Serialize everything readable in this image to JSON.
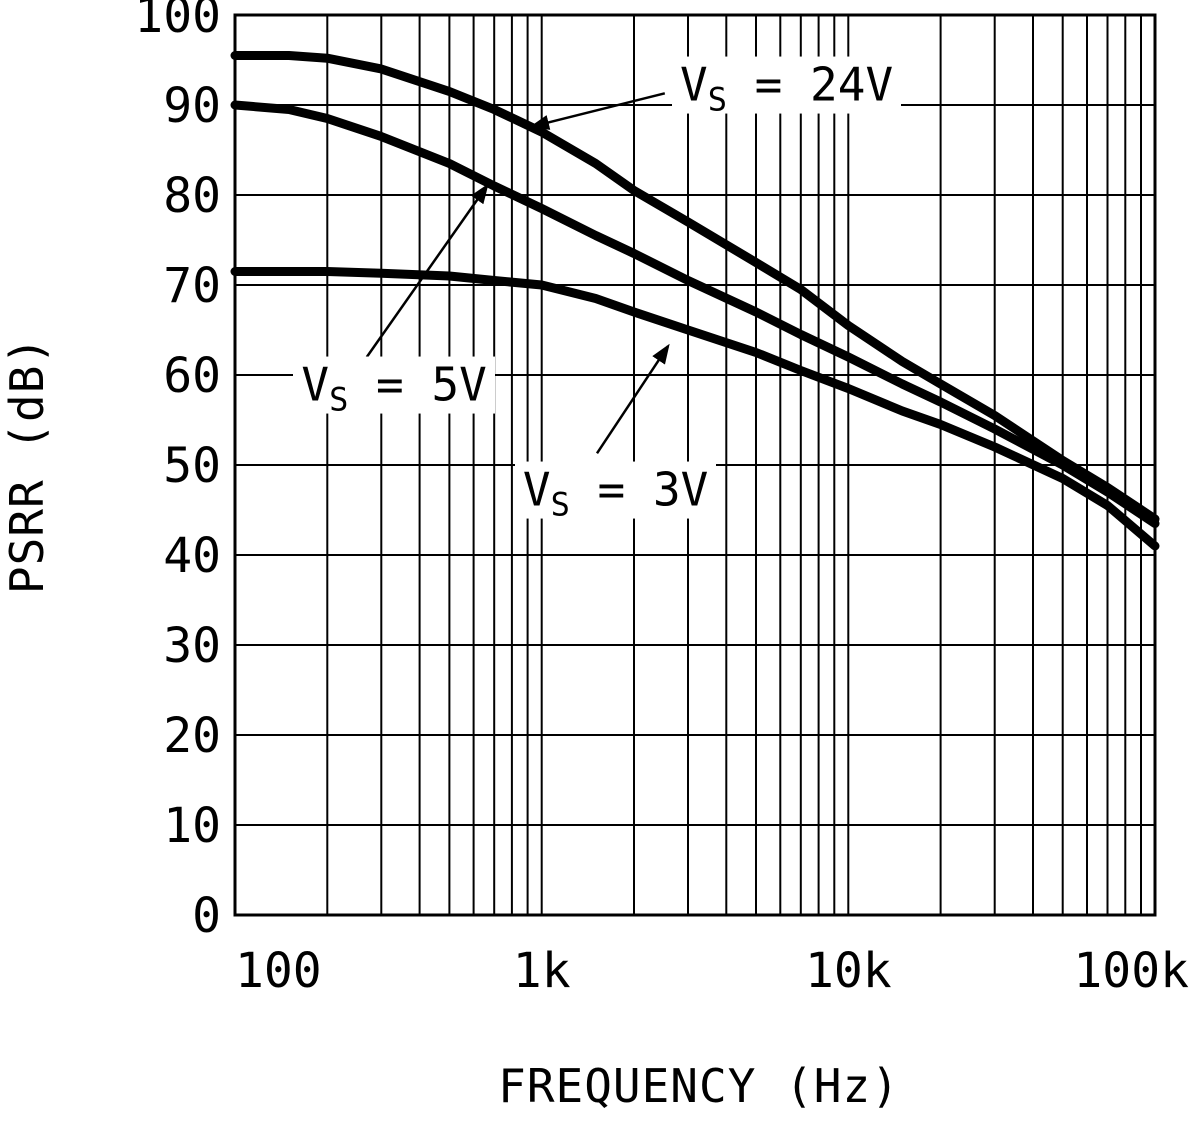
{
  "figure": {
    "background": "#ffffff",
    "line_color": "#000000"
  },
  "chart_data": {
    "type": "line",
    "title": "",
    "xlabel": "FREQUENCY (Hz)",
    "ylabel": "PSRR (dB)",
    "x_scale": "log",
    "xlim": [
      100,
      100000
    ],
    "ylim": [
      0,
      100
    ],
    "grid": "log minor verticals per decade, horizontal every 10 dB",
    "legend_position": "inline-callouts",
    "x_ticks": [
      {
        "value": 100,
        "label": "100"
      },
      {
        "value": 1000,
        "label": "1k"
      },
      {
        "value": 10000,
        "label": "10k"
      },
      {
        "value": 100000,
        "label": "100k"
      }
    ],
    "y_ticks": [
      {
        "value": 0,
        "label": "0"
      },
      {
        "value": 10,
        "label": "10"
      },
      {
        "value": 20,
        "label": "20"
      },
      {
        "value": 30,
        "label": "30"
      },
      {
        "value": 40,
        "label": "40"
      },
      {
        "value": 50,
        "label": "50"
      },
      {
        "value": 60,
        "label": "60"
      },
      {
        "value": 70,
        "label": "70"
      },
      {
        "value": 80,
        "label": "80"
      },
      {
        "value": 90,
        "label": "90"
      },
      {
        "value": 100,
        "label": "100"
      }
    ],
    "series": [
      {
        "id": "24v",
        "name": "VS = 24V",
        "points": [
          [
            100,
            95.5
          ],
          [
            150,
            95.5
          ],
          [
            200,
            95.2
          ],
          [
            300,
            94
          ],
          [
            500,
            91.5
          ],
          [
            700,
            89.5
          ],
          [
            1000,
            87
          ],
          [
            1500,
            83.5
          ],
          [
            2000,
            80.5
          ],
          [
            3000,
            77
          ],
          [
            5000,
            72.5
          ],
          [
            7000,
            69.5
          ],
          [
            10000,
            65.5
          ],
          [
            15000,
            61.5
          ],
          [
            20000,
            59
          ],
          [
            30000,
            55.5
          ],
          [
            50000,
            50.5
          ],
          [
            70000,
            47.5
          ],
          [
            100000,
            44
          ]
        ]
      },
      {
        "id": "5v",
        "name": "VS = 5V",
        "points": [
          [
            100,
            90
          ],
          [
            150,
            89.5
          ],
          [
            200,
            88.5
          ],
          [
            300,
            86.5
          ],
          [
            500,
            83.5
          ],
          [
            700,
            81
          ],
          [
            1000,
            78.5
          ],
          [
            1500,
            75.5
          ],
          [
            2000,
            73.5
          ],
          [
            3000,
            70.5
          ],
          [
            5000,
            67
          ],
          [
            7000,
            64.5
          ],
          [
            10000,
            62
          ],
          [
            15000,
            59
          ],
          [
            20000,
            57
          ],
          [
            30000,
            54
          ],
          [
            50000,
            50
          ],
          [
            70000,
            47
          ],
          [
            100000,
            43.5
          ]
        ]
      },
      {
        "id": "3v",
        "name": "VS = 3V",
        "points": [
          [
            100,
            71.5
          ],
          [
            200,
            71.5
          ],
          [
            300,
            71.3
          ],
          [
            500,
            71
          ],
          [
            700,
            70.5
          ],
          [
            1000,
            70
          ],
          [
            1500,
            68.5
          ],
          [
            2000,
            67
          ],
          [
            3000,
            65
          ],
          [
            5000,
            62.5
          ],
          [
            7000,
            60.5
          ],
          [
            10000,
            58.5
          ],
          [
            15000,
            56
          ],
          [
            20000,
            54.5
          ],
          [
            30000,
            52
          ],
          [
            50000,
            48.5
          ],
          [
            70000,
            45.5
          ],
          [
            100000,
            41
          ]
        ]
      }
    ],
    "annotations": [
      {
        "series": "24v",
        "v": "V",
        "sub": "S",
        "rest": " = 24V",
        "label_freq": 2660,
        "label_db": 92.2,
        "arrow_from_freq": 2520,
        "arrow_from_db": 91.3,
        "arrow_to_freq": 930,
        "arrow_to_db": 87.6
      },
      {
        "series": "5v",
        "v": "V",
        "sub": "S",
        "rest": " = 5V",
        "label_freq": 155,
        "label_db": 58.9,
        "arrow_from_freq": 269,
        "arrow_from_db": 62.0,
        "arrow_to_freq": 663,
        "arrow_to_db": 81.0
      },
      {
        "series": "3v",
        "v": "V",
        "sub": "S",
        "rest": " = 3V",
        "label_freq": 818,
        "label_db": 47.2,
        "arrow_from_freq": 1515,
        "arrow_from_db": 51.3,
        "arrow_to_freq": 2582,
        "arrow_to_db": 63.2
      }
    ]
  }
}
